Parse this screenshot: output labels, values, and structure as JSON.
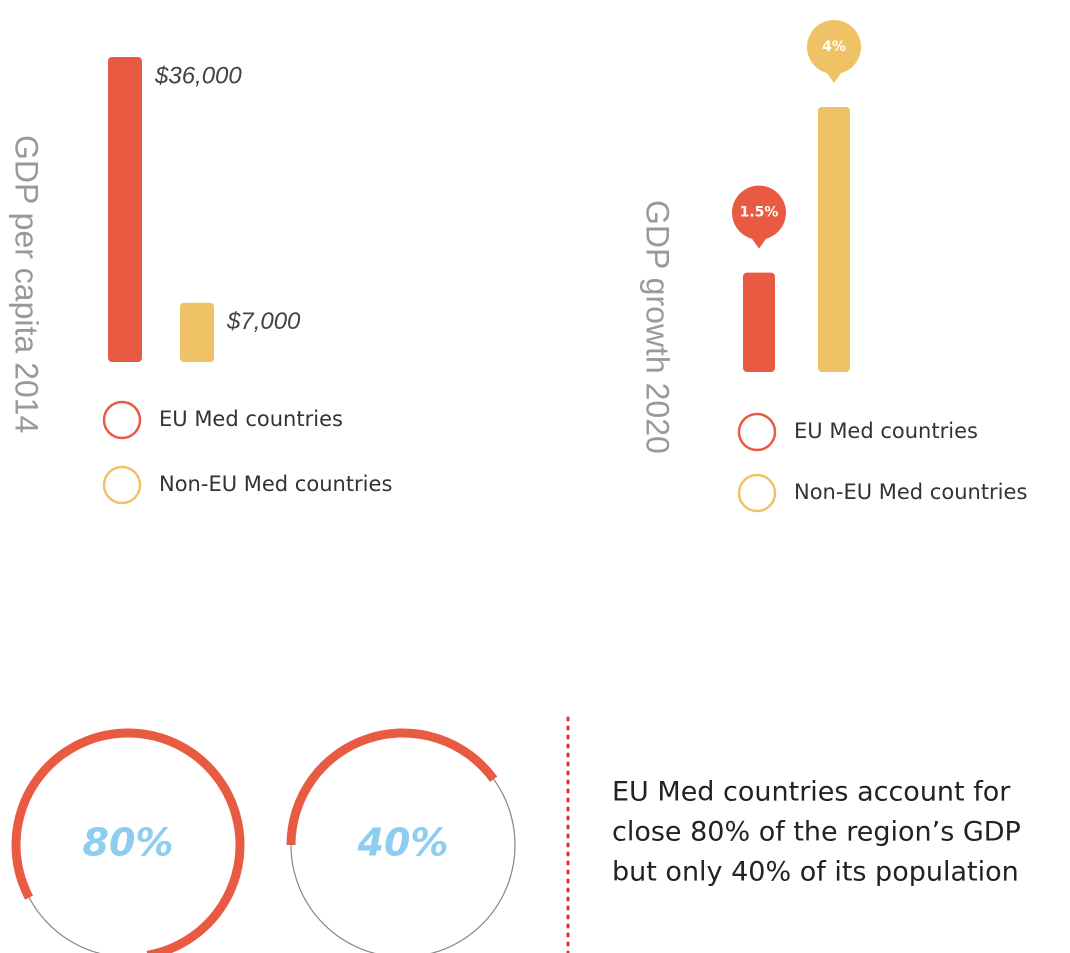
{
  "chart_data": [
    {
      "type": "bar",
      "title": "GDP per capita 2014",
      "categories": [
        "EU Med countries",
        "Non-EU Med countries"
      ],
      "values": [
        36000,
        7000
      ],
      "value_labels": [
        "$36,000",
        "$7,000"
      ],
      "colors": [
        "#e95a42",
        "#f0c266"
      ]
    },
    {
      "type": "pin-bar",
      "title": "GDP growth 2020",
      "categories": [
        "EU Med countries",
        "Non-EU Med countries"
      ],
      "values": [
        1.5,
        4
      ],
      "value_labels": [
        "1.5%",
        "4%"
      ],
      "colors": [
        "#e95a42",
        "#f0c266"
      ]
    },
    {
      "type": "gauge",
      "values": [
        80,
        40
      ],
      "value_labels": [
        "80%",
        "40%"
      ],
      "color": "#e95a42",
      "label_color": "#8ccdf0",
      "annotation": [
        "EU Med countries account for",
        "close 80% of the region’s GDP",
        "but only 40% of its population"
      ]
    }
  ]
}
